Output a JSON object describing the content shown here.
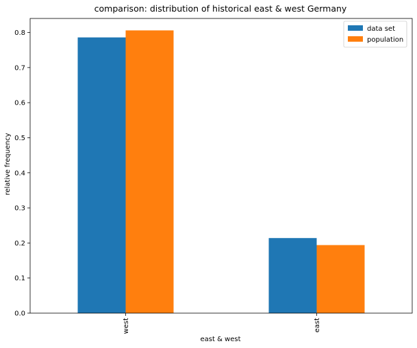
{
  "chart_data": {
    "type": "bar",
    "title": "comparison: distribution of historical east & west Germany",
    "xlabel": "east & west",
    "ylabel": "relative frequency",
    "categories": [
      "west",
      "east"
    ],
    "series": [
      {
        "name": "data set",
        "values": [
          0.786,
          0.214
        ],
        "color": "#1f77b4"
      },
      {
        "name": "population",
        "values": [
          0.806,
          0.194
        ],
        "color": "#ff7f0e"
      }
    ],
    "ylim": [
      0,
      0.84
    ],
    "yticks": [
      "0.0",
      "0.1",
      "0.2",
      "0.3",
      "0.4",
      "0.5",
      "0.6",
      "0.7",
      "0.8"
    ],
    "ytick_values": [
      0,
      0.1,
      0.2,
      0.3,
      0.4,
      0.5,
      0.6,
      0.7,
      0.8
    ],
    "x_tick_rotation": "vertical",
    "legend_position": "top-right",
    "grid": false
  }
}
